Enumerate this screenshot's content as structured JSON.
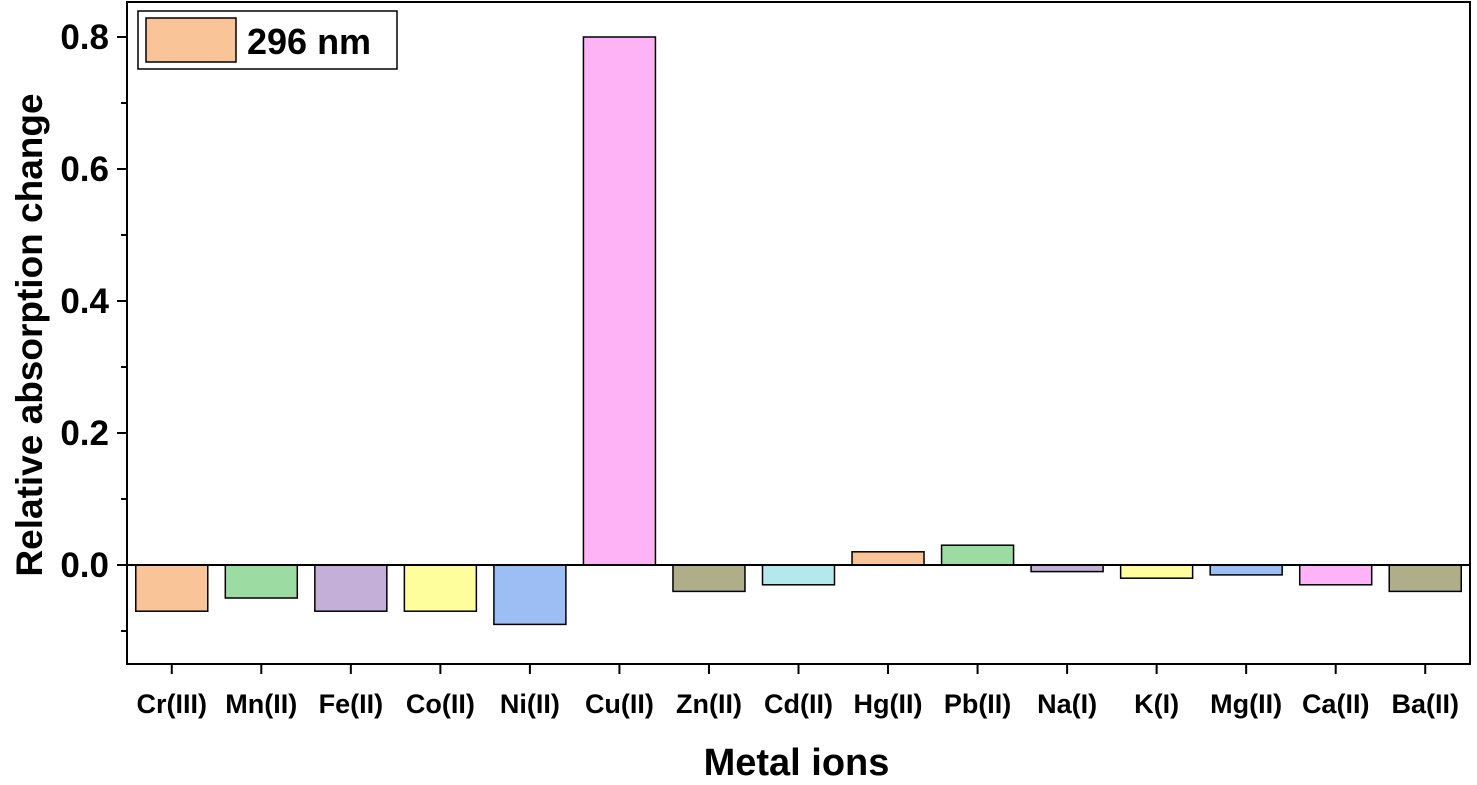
{
  "chart_data": {
    "type": "bar",
    "xlabel": "Metal ions",
    "ylabel": "Relative absorption change",
    "ylim": [
      -0.15,
      0.85
    ],
    "yticks": [
      0.0,
      0.2,
      0.4,
      0.6,
      0.8
    ],
    "ytick_labels": [
      "0.0",
      "0.2",
      "0.4",
      "0.6",
      "0.8"
    ],
    "categories": [
      "Cr(III)",
      "Mn(II)",
      "Fe(II)",
      "Co(II)",
      "Ni(II)",
      "Cu(II)",
      "Zn(II)",
      "Cd(II)",
      "Hg(II)",
      "Pb(II)",
      "Na(I)",
      "K(I)",
      "Mg(II)",
      "Ca(II)",
      "Ba(II)"
    ],
    "series": [
      {
        "name": "296 nm",
        "values": [
          -0.07,
          -0.05,
          -0.07,
          -0.07,
          -0.09,
          0.8,
          -0.04,
          -0.03,
          0.02,
          0.03,
          -0.01,
          -0.02,
          -0.015,
          -0.03,
          -0.04
        ]
      }
    ],
    "bar_colors": [
      "#F9C497",
      "#9CDBA1",
      "#C4AFD8",
      "#FEFE9D",
      "#9DBDF5",
      "#FDB3F6",
      "#B0AE88",
      "#B3E8EC",
      "#F9C497",
      "#9CDBA1",
      "#C4AFD8",
      "#FEFE9D",
      "#9DBDF5",
      "#FDB3F6",
      "#B0AE88"
    ],
    "legend": {
      "position": "top-left",
      "label": "296 nm",
      "color": "#F9C497"
    },
    "grid": false
  }
}
